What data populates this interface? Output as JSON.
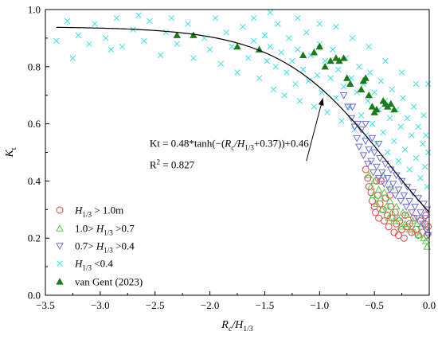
{
  "chart_data": {
    "type": "scatter",
    "title": "",
    "xlabel": {
      "main": "R",
      "sub1": "c",
      "mid": "/H",
      "sub2": "1/3"
    },
    "ylabel": {
      "main": "K",
      "sub1": "t"
    },
    "xlim": [
      -3.5,
      0.0
    ],
    "ylim": [
      0.0,
      1.0
    ],
    "x_ticks": [
      -3.5,
      -3.0,
      -2.5,
      -2.0,
      -1.5,
      -1.0,
      -0.5,
      0.0
    ],
    "x_tick_labels": [
      "−3.5",
      "−3.0",
      "−2.5",
      "−2.0",
      "−1.5",
      "−1.0",
      "−0.5",
      "0.0"
    ],
    "y_ticks": [
      0.0,
      0.2,
      0.4,
      0.6,
      0.8,
      1.0
    ],
    "y_tick_labels": [
      "0.0",
      "0.2",
      "0.4",
      "0.6",
      "0.8",
      "1.0"
    ],
    "grid": false,
    "legend_position": "bottom-left",
    "series": [
      {
        "name": "H1/3 > 1.0m",
        "legend_parts": [
          [
            "H",
            "i"
          ],
          [
            "1/3",
            "sub"
          ],
          [
            " > 1.0m",
            ""
          ]
        ],
        "marker": "circle",
        "color": "#e8433f",
        "points": [
          [
            -0.58,
            0.44
          ],
          [
            -0.56,
            0.41
          ],
          [
            -0.55,
            0.38
          ],
          [
            -0.53,
            0.36
          ],
          [
            -0.52,
            0.33
          ],
          [
            -0.5,
            0.31
          ],
          [
            -0.49,
            0.29
          ],
          [
            -0.47,
            0.35
          ],
          [
            -0.46,
            0.27
          ],
          [
            -0.45,
            0.32
          ],
          [
            -0.44,
            0.4
          ],
          [
            -0.42,
            0.3
          ],
          [
            -0.41,
            0.26
          ],
          [
            -0.4,
            0.34
          ],
          [
            -0.38,
            0.28
          ],
          [
            -0.37,
            0.24
          ],
          [
            -0.35,
            0.31
          ],
          [
            -0.34,
            0.27
          ],
          [
            -0.32,
            0.22
          ],
          [
            -0.31,
            0.29
          ],
          [
            -0.3,
            0.25
          ],
          [
            -0.28,
            0.21
          ],
          [
            -0.27,
            0.26
          ],
          [
            -0.25,
            0.23
          ],
          [
            -0.23,
            0.2
          ],
          [
            -0.22,
            0.28
          ],
          [
            -0.2,
            0.24
          ],
          [
            -0.18,
            0.25
          ],
          [
            -0.16,
            0.22
          ],
          [
            -0.14,
            0.27
          ],
          [
            -0.12,
            0.23
          ],
          [
            -0.1,
            0.21
          ],
          [
            -0.08,
            0.26
          ],
          [
            -0.06,
            0.22
          ],
          [
            -0.04,
            0.25
          ],
          [
            -0.03,
            0.28
          ],
          [
            -0.02,
            0.21
          ],
          [
            -0.01,
            0.24
          ],
          [
            -0.36,
            0.35
          ],
          [
            -0.48,
            0.4
          ]
        ]
      },
      {
        "name": "1.0> H1/3 >0.7",
        "legend_parts": [
          [
            "1.0> ",
            ""
          ],
          [
            "H",
            "i"
          ],
          [
            "1/3",
            "sub"
          ],
          [
            " >0.7",
            ""
          ]
        ],
        "marker": "triangle-up",
        "color": "#5cc84a",
        "points": [
          [
            -0.55,
            0.42
          ],
          [
            -0.53,
            0.38
          ],
          [
            -0.51,
            0.35
          ],
          [
            -0.5,
            0.4
          ],
          [
            -0.48,
            0.32
          ],
          [
            -0.46,
            0.37
          ],
          [
            -0.44,
            0.34
          ],
          [
            -0.43,
            0.3
          ],
          [
            -0.41,
            0.36
          ],
          [
            -0.39,
            0.31
          ],
          [
            -0.37,
            0.27
          ],
          [
            -0.36,
            0.33
          ],
          [
            -0.34,
            0.29
          ],
          [
            -0.32,
            0.26
          ],
          [
            -0.3,
            0.31
          ],
          [
            -0.28,
            0.27
          ],
          [
            -0.26,
            0.24
          ],
          [
            -0.24,
            0.29
          ],
          [
            -0.22,
            0.25
          ],
          [
            -0.2,
            0.28
          ],
          [
            -0.18,
            0.23
          ],
          [
            -0.15,
            0.26
          ],
          [
            -0.13,
            0.22
          ],
          [
            -0.11,
            0.25
          ],
          [
            -0.09,
            0.21
          ],
          [
            -0.07,
            0.24
          ],
          [
            -0.05,
            0.2
          ],
          [
            -0.03,
            0.19
          ],
          [
            -0.02,
            0.17
          ],
          [
            -0.01,
            0.22
          ],
          [
            -0.42,
            0.42
          ],
          [
            -0.35,
            0.38
          ]
        ]
      },
      {
        "name": "0.7> H1/3 >0.4",
        "legend_parts": [
          [
            "0.7> ",
            ""
          ],
          [
            "H",
            "i"
          ],
          [
            "1/3",
            "sub"
          ],
          [
            " >0.4",
            ""
          ]
        ],
        "marker": "triangle-down",
        "color": "#6e6ed8",
        "points": [
          [
            -0.78,
            0.7
          ],
          [
            -0.74,
            0.66
          ],
          [
            -0.71,
            0.62
          ],
          [
            -0.68,
            0.59
          ],
          [
            -0.66,
            0.55
          ],
          [
            -0.64,
            0.52
          ],
          [
            -0.62,
            0.58
          ],
          [
            -0.6,
            0.49
          ],
          [
            -0.58,
            0.54
          ],
          [
            -0.56,
            0.46
          ],
          [
            -0.55,
            0.51
          ],
          [
            -0.53,
            0.47
          ],
          [
            -0.51,
            0.43
          ],
          [
            -0.5,
            0.5
          ],
          [
            -0.48,
            0.45
          ],
          [
            -0.46,
            0.41
          ],
          [
            -0.45,
            0.48
          ],
          [
            -0.43,
            0.43
          ],
          [
            -0.41,
            0.39
          ],
          [
            -0.4,
            0.46
          ],
          [
            -0.38,
            0.41
          ],
          [
            -0.36,
            0.37
          ],
          [
            -0.35,
            0.44
          ],
          [
            -0.33,
            0.39
          ],
          [
            -0.31,
            0.35
          ],
          [
            -0.3,
            0.42
          ],
          [
            -0.28,
            0.37
          ],
          [
            -0.26,
            0.33
          ],
          [
            -0.25,
            0.4
          ],
          [
            -0.23,
            0.35
          ],
          [
            -0.21,
            0.31
          ],
          [
            -0.2,
            0.38
          ],
          [
            -0.18,
            0.33
          ],
          [
            -0.16,
            0.29
          ],
          [
            -0.15,
            0.36
          ],
          [
            -0.13,
            0.31
          ],
          [
            -0.11,
            0.27
          ],
          [
            -0.1,
            0.34
          ],
          [
            -0.08,
            0.29
          ],
          [
            -0.06,
            0.25
          ],
          [
            -0.05,
            0.32
          ],
          [
            -0.04,
            0.27
          ],
          [
            -0.03,
            0.23
          ],
          [
            -0.02,
            0.3
          ],
          [
            -0.01,
            0.21
          ],
          [
            -0.7,
            0.66
          ],
          [
            -0.65,
            0.6
          ],
          [
            -0.58,
            0.6
          ],
          [
            -0.52,
            0.55
          ],
          [
            -0.46,
            0.53
          ]
        ]
      },
      {
        "name": "H1/3 <0.4",
        "legend_parts": [
          [
            "H",
            "i"
          ],
          [
            "1/3",
            "sub"
          ],
          [
            " <0.4",
            ""
          ]
        ],
        "marker": "x",
        "color": "#3ee0e0",
        "points": [
          [
            -3.4,
            0.89
          ],
          [
            -3.3,
            0.96
          ],
          [
            -3.2,
            0.91
          ],
          [
            -3.1,
            0.88
          ],
          [
            -3.05,
            0.95
          ],
          [
            -2.95,
            0.9
          ],
          [
            -2.85,
            0.97
          ],
          [
            -2.8,
            0.87
          ],
          [
            -2.7,
            0.93
          ],
          [
            -2.6,
            0.89
          ],
          [
            -2.55,
            0.96
          ],
          [
            -2.45,
            0.84
          ],
          [
            -2.4,
            0.92
          ],
          [
            -2.3,
            0.88
          ],
          [
            -2.2,
            0.95
          ],
          [
            -2.15,
            0.83
          ],
          [
            -2.05,
            0.9
          ],
          [
            -2.0,
            0.86
          ],
          [
            -1.95,
            0.97
          ],
          [
            -1.9,
            0.81
          ],
          [
            -1.85,
            0.92
          ],
          [
            -1.8,
            0.87
          ],
          [
            -1.75,
            0.78
          ],
          [
            -1.7,
            0.94
          ],
          [
            -1.65,
            0.83
          ],
          [
            -1.6,
            0.89
          ],
          [
            -1.55,
            0.76
          ],
          [
            -1.5,
            0.91
          ],
          [
            -1.48,
            0.82
          ],
          [
            -1.45,
            0.87
          ],
          [
            -1.42,
            0.72
          ],
          [
            -1.4,
            0.8
          ],
          [
            -1.38,
            0.95
          ],
          [
            -1.35,
            0.85
          ],
          [
            -1.32,
            0.7
          ],
          [
            -1.3,
            0.78
          ],
          [
            -1.28,
            0.9
          ],
          [
            -1.25,
            0.82
          ],
          [
            -1.22,
            0.74
          ],
          [
            -1.2,
            0.86
          ],
          [
            -1.18,
            0.68
          ],
          [
            -1.15,
            0.79
          ],
          [
            -1.12,
            0.92
          ],
          [
            -1.1,
            0.75
          ],
          [
            -1.08,
            0.84
          ],
          [
            -1.05,
            0.66
          ],
          [
            -1.02,
            0.77
          ],
          [
            -1.0,
            0.88
          ],
          [
            -0.98,
            0.71
          ],
          [
            -0.95,
            0.82
          ],
          [
            -0.93,
            0.64
          ],
          [
            -0.9,
            0.76
          ],
          [
            -0.88,
            0.86
          ],
          [
            -0.85,
            0.69
          ],
          [
            -0.83,
            0.79
          ],
          [
            -0.8,
            0.61
          ],
          [
            -0.78,
            0.73
          ],
          [
            -0.76,
            0.83
          ],
          [
            -0.73,
            0.66
          ],
          [
            -0.71,
            0.76
          ],
          [
            -0.68,
            0.58
          ],
          [
            -0.66,
            0.71
          ],
          [
            -0.64,
            0.8
          ],
          [
            -0.62,
            0.63
          ],
          [
            -0.6,
            0.74
          ],
          [
            -0.58,
            0.56
          ],
          [
            -0.56,
            0.68
          ],
          [
            -0.54,
            0.78
          ],
          [
            -0.52,
            0.6
          ],
          [
            -0.5,
            0.71
          ],
          [
            -0.48,
            0.53
          ],
          [
            -0.46,
            0.65
          ],
          [
            -0.44,
            0.75
          ],
          [
            -0.42,
            0.57
          ],
          [
            -0.4,
            0.68
          ],
          [
            -0.38,
            0.5
          ],
          [
            -0.36,
            0.62
          ],
          [
            -0.34,
            0.72
          ],
          [
            -0.32,
            0.54
          ],
          [
            -0.3,
            0.65
          ],
          [
            -0.28,
            0.47
          ],
          [
            -0.26,
            0.59
          ],
          [
            -0.24,
            0.69
          ],
          [
            -0.22,
            0.51
          ],
          [
            -0.2,
            0.62
          ],
          [
            -0.18,
            0.44
          ],
          [
            -0.16,
            0.56
          ],
          [
            -0.14,
            0.66
          ],
          [
            -0.12,
            0.48
          ],
          [
            -0.1,
            0.59
          ],
          [
            -0.08,
            0.41
          ],
          [
            -0.06,
            0.53
          ],
          [
            -0.05,
            0.63
          ],
          [
            -0.04,
            0.45
          ],
          [
            -0.03,
            0.56
          ],
          [
            -0.02,
            0.38
          ],
          [
            -0.01,
            0.5
          ],
          [
            -0.01,
            0.74
          ],
          [
            -3.25,
            0.83
          ],
          [
            -2.9,
            0.86
          ],
          [
            -2.65,
            0.98
          ],
          [
            -2.35,
            0.97
          ],
          [
            -1.6,
            0.97
          ],
          [
            -1.45,
            0.99
          ],
          [
            -1.2,
            0.97
          ],
          [
            -1.0,
            0.95
          ],
          [
            -0.85,
            0.94
          ],
          [
            -0.7,
            0.9
          ],
          [
            -0.55,
            0.87
          ],
          [
            -0.4,
            0.82
          ],
          [
            -0.25,
            0.78
          ],
          [
            -0.12,
            0.74
          ]
        ]
      },
      {
        "name": "van Gent (2023)",
        "legend_parts": [
          [
            "van Gent (2023)",
            ""
          ]
        ],
        "marker": "triangle-filled",
        "color": "#1a7a1a",
        "points": [
          [
            -2.3,
            0.91
          ],
          [
            -2.15,
            0.91
          ],
          [
            -1.75,
            0.87
          ],
          [
            -1.55,
            0.86
          ],
          [
            -1.15,
            0.84
          ],
          [
            -1.05,
            0.85
          ],
          [
            -1.0,
            0.87
          ],
          [
            -0.95,
            0.8
          ],
          [
            -0.9,
            0.82
          ],
          [
            -0.85,
            0.83
          ],
          [
            -0.82,
            0.82
          ],
          [
            -0.78,
            0.83
          ],
          [
            -0.75,
            0.76
          ],
          [
            -0.72,
            0.74
          ],
          [
            -0.62,
            0.72
          ],
          [
            -0.6,
            0.75
          ],
          [
            -0.58,
            0.76
          ],
          [
            -0.55,
            0.7
          ],
          [
            -0.52,
            0.66
          ],
          [
            -0.5,
            0.64
          ],
          [
            -0.48,
            0.65
          ],
          [
            -0.42,
            0.68
          ],
          [
            -0.4,
            0.67
          ],
          [
            -0.38,
            0.66
          ],
          [
            -0.35,
            0.67
          ],
          [
            -0.32,
            0.65
          ]
        ]
      }
    ],
    "fit": {
      "equation_label": "Kt = 0.48*tanh(−(Rc/H1/3+0.37))+0.46",
      "r2_label": "R2 = 0.827",
      "a": 0.48,
      "b": 0.37,
      "c": 0.46,
      "color": "#000000"
    },
    "annotation": {
      "equation_parts": [
        [
          "Kt = 0.48*tanh(−(",
          ""
        ],
        [
          "R",
          "i"
        ],
        [
          "c",
          "sub"
        ],
        [
          "/",
          "i"
        ],
        [
          "H",
          "i"
        ],
        [
          "1/3",
          "sub"
        ],
        [
          "+0.37))+0.46",
          ""
        ]
      ],
      "r2_parts": [
        [
          "R",
          ""
        ],
        [
          "2",
          "sup"
        ],
        [
          " = 0.827",
          ""
        ]
      ],
      "arrow_from": [
        -1.12,
        0.47
      ],
      "arrow_to": [
        -0.97,
        0.69
      ]
    }
  }
}
